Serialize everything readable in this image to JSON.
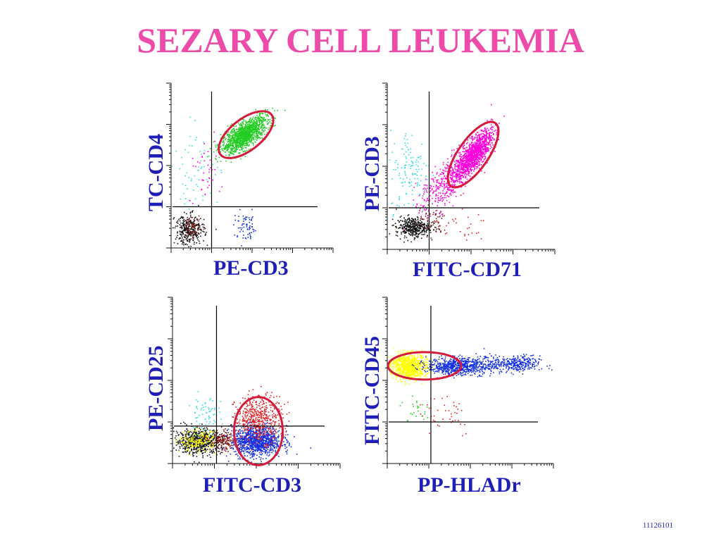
{
  "title": "SEZARY CELL LEUKEMIA",
  "footer_code": "11126101",
  "colors": {
    "title": "#ee4aaa",
    "label": "#1f1fb8",
    "gate": "#d61a3c",
    "green": "#22cc22",
    "magenta": "#ff00dd",
    "cyan": "#33dddd",
    "black": "#111111",
    "blue": "#1530e0",
    "red": "#e22222",
    "yellow": "#ffff00",
    "dark_red": "#8b1a1a"
  },
  "chart_data": [
    {
      "type": "scatter",
      "xlabel": "PE-CD3",
      "ylabel": "TC-CD4",
      "xlim": [
        0,
        4
      ],
      "ylim": [
        0,
        4
      ],
      "quadrant_cut": {
        "x": 1.0,
        "y": 1.0
      },
      "gate": {
        "cx": 1.85,
        "cy": 2.75,
        "rx": 0.8,
        "ry": 0.38,
        "angle_deg": 38
      },
      "series": [
        {
          "color": "green",
          "cx": 1.8,
          "cy": 2.75,
          "sx": 0.28,
          "sy": 0.22,
          "corr": 0.7,
          "n": 1300
        },
        {
          "color": "black",
          "cx": 0.45,
          "cy": 0.45,
          "sx": 0.18,
          "sy": 0.18,
          "corr": 0,
          "n": 320
        },
        {
          "color": "dark_red",
          "cx": 0.5,
          "cy": 0.5,
          "sx": 0.12,
          "sy": 0.12,
          "corr": 0,
          "n": 60
        },
        {
          "color": "blue",
          "cx": 1.85,
          "cy": 0.5,
          "sx": 0.15,
          "sy": 0.18,
          "corr": 0,
          "n": 70
        },
        {
          "color": "cyan",
          "cx": 0.6,
          "cy": 1.9,
          "sx": 0.3,
          "sy": 0.5,
          "corr": 0,
          "n": 60
        },
        {
          "color": "magenta",
          "cx": 0.8,
          "cy": 1.9,
          "sx": 0.2,
          "sy": 0.4,
          "corr": 0,
          "n": 40
        }
      ]
    },
    {
      "type": "scatter",
      "xlabel": "FITC-CD71",
      "ylabel": "PE-CD3",
      "xlim": [
        0,
        4
      ],
      "ylim": [
        0,
        4
      ],
      "quadrant_cut": {
        "x": 1.0,
        "y": 1.0
      },
      "gate": {
        "cx": 2.05,
        "cy": 2.28,
        "rx": 0.92,
        "ry": 0.36,
        "angle_deg": 55
      },
      "series": [
        {
          "color": "magenta",
          "cx": 2.05,
          "cy": 2.3,
          "sx": 0.22,
          "sy": 0.28,
          "corr": 0.75,
          "n": 1200
        },
        {
          "color": "magenta",
          "cx": 1.4,
          "cy": 1.6,
          "sx": 0.3,
          "sy": 0.35,
          "corr": 0.6,
          "n": 400
        },
        {
          "color": "cyan",
          "cx": 0.55,
          "cy": 1.9,
          "sx": 0.25,
          "sy": 0.5,
          "corr": 0,
          "n": 130
        },
        {
          "color": "black",
          "cx": 0.6,
          "cy": 0.55,
          "sx": 0.2,
          "sy": 0.12,
          "corr": 0,
          "n": 380
        },
        {
          "color": "dark_red",
          "cx": 1.1,
          "cy": 0.7,
          "sx": 0.2,
          "sy": 0.18,
          "corr": 0,
          "n": 50
        },
        {
          "color": "red",
          "cx": 1.6,
          "cy": 0.6,
          "sx": 0.4,
          "sy": 0.2,
          "corr": 0,
          "n": 30
        }
      ]
    },
    {
      "type": "scatter",
      "xlabel": "FITC-CD3",
      "ylabel": "PE-CD25",
      "xlim": [
        0,
        4
      ],
      "ylim": [
        0,
        4
      ],
      "quadrant_cut": {
        "x": 1.05,
        "y": 0.9
      },
      "gate": {
        "cx": 2.05,
        "cy": 0.78,
        "rx": 0.58,
        "ry": 0.82,
        "angle_deg": 0
      },
      "series": [
        {
          "color": "blue",
          "cx": 2.0,
          "cy": 0.55,
          "sx": 0.3,
          "sy": 0.18,
          "corr": 0,
          "n": 1100
        },
        {
          "color": "red",
          "cx": 2.05,
          "cy": 1.1,
          "sx": 0.28,
          "sy": 0.28,
          "corr": 0,
          "n": 500
        },
        {
          "color": "black",
          "cx": 0.6,
          "cy": 0.55,
          "sx": 0.28,
          "sy": 0.15,
          "corr": 0,
          "n": 650
        },
        {
          "color": "yellow",
          "cx": 0.6,
          "cy": 0.55,
          "sx": 0.22,
          "sy": 0.12,
          "corr": 0,
          "n": 180
        },
        {
          "color": "dark_red",
          "cx": 1.2,
          "cy": 0.55,
          "sx": 0.15,
          "sy": 0.12,
          "corr": 0,
          "n": 150
        },
        {
          "color": "cyan",
          "cx": 0.75,
          "cy": 1.15,
          "sx": 0.2,
          "sy": 0.25,
          "corr": 0,
          "n": 70
        }
      ]
    },
    {
      "type": "scatter",
      "xlabel": "PP-HLADr",
      "ylabel": "FITC-CD45",
      "xlim": [
        0,
        4
      ],
      "ylim": [
        0,
        4
      ],
      "quadrant_cut": {
        "x": 1.05,
        "y": 1.0
      },
      "gate": {
        "cx": 0.9,
        "cy": 2.35,
        "rx": 0.88,
        "ry": 0.33,
        "angle_deg": 0
      },
      "series": [
        {
          "color": "yellow",
          "cx": 0.5,
          "cy": 2.35,
          "sx": 0.22,
          "sy": 0.15,
          "corr": 0,
          "n": 900
        },
        {
          "color": "blue",
          "cx": 1.65,
          "cy": 2.35,
          "sx": 0.35,
          "sy": 0.1,
          "corr": 0,
          "n": 650
        },
        {
          "color": "blue",
          "cx": 3.1,
          "cy": 2.4,
          "sx": 0.28,
          "sy": 0.1,
          "corr": 0,
          "n": 300
        },
        {
          "color": "blue",
          "cx": 2.35,
          "cy": 2.4,
          "sx": 0.25,
          "sy": 0.12,
          "corr": 0,
          "n": 120
        },
        {
          "color": "red",
          "cx": 1.4,
          "cy": 1.25,
          "sx": 0.35,
          "sy": 0.3,
          "corr": 0,
          "n": 40
        },
        {
          "color": "green",
          "cx": 0.7,
          "cy": 1.3,
          "sx": 0.2,
          "sy": 0.2,
          "corr": 0,
          "n": 25
        }
      ]
    }
  ]
}
